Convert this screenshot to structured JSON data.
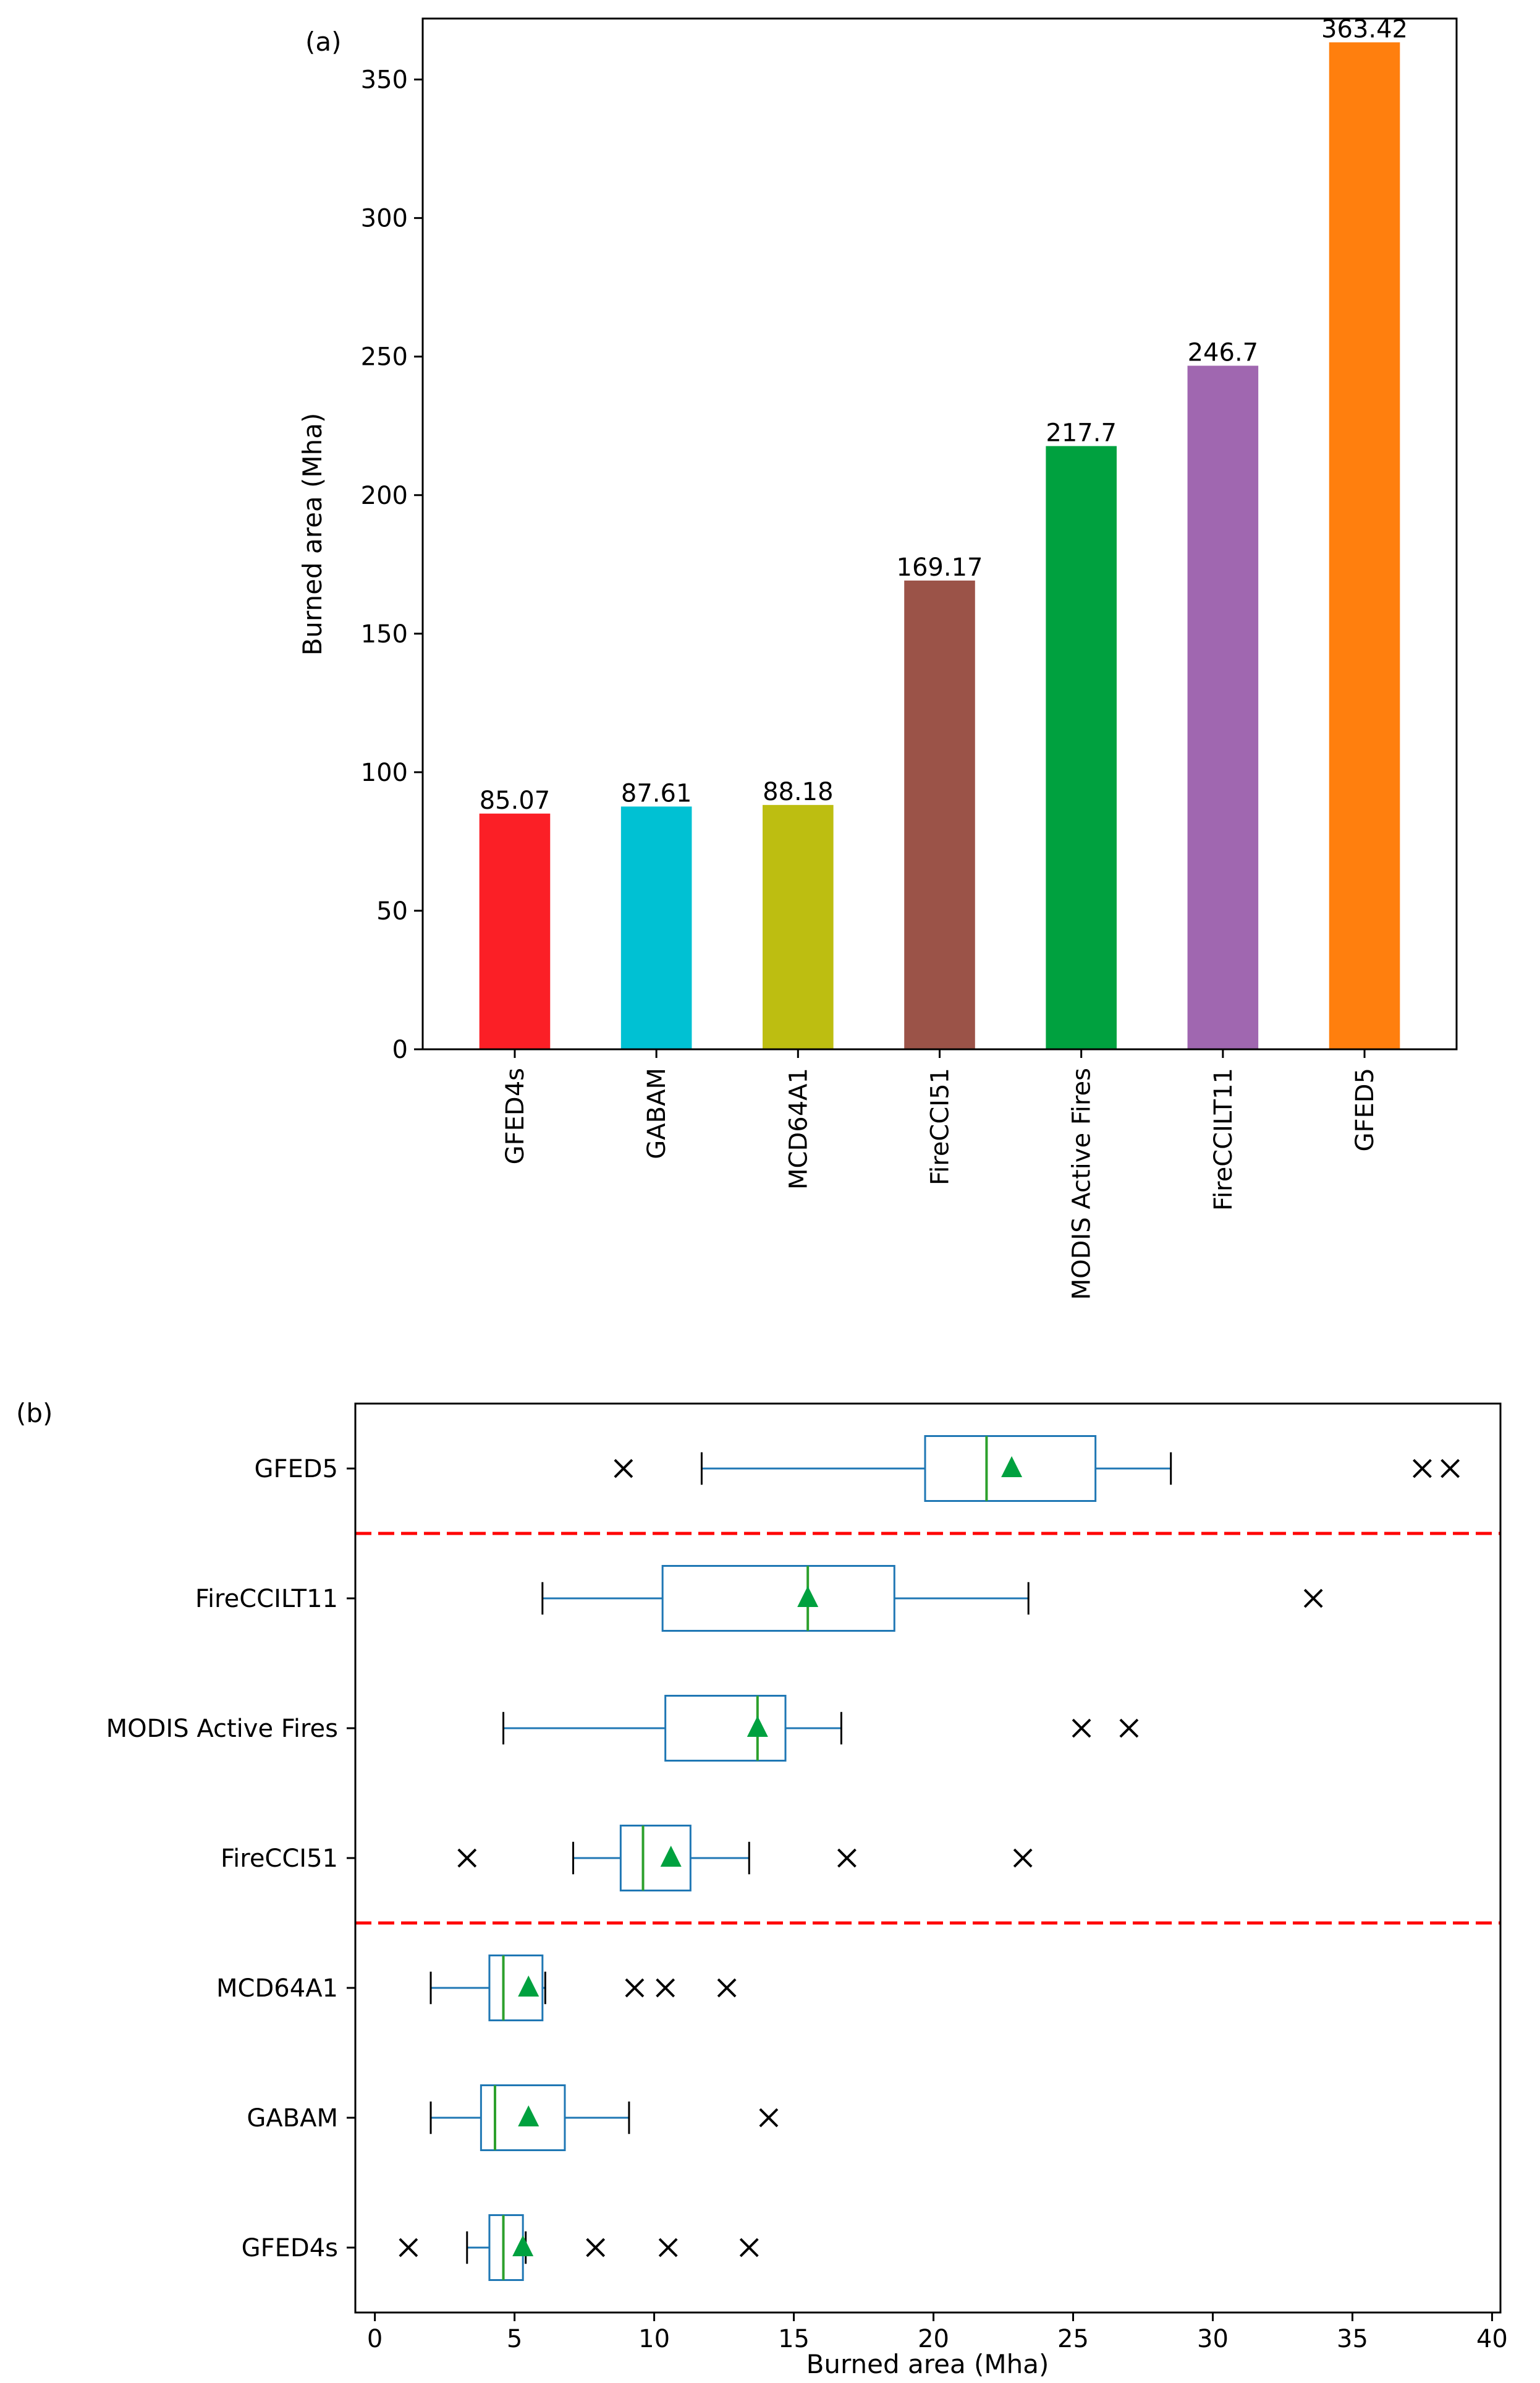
{
  "chart_data": [
    {
      "type": "bar",
      "panel_label": "(a)",
      "title": "",
      "xlabel": "",
      "ylabel": "Burned area (Mha)",
      "ylim": [
        0,
        372
      ],
      "yticks": [
        0,
        50,
        100,
        150,
        200,
        250,
        300,
        350
      ],
      "categories": [
        "GFED4s",
        "GABAM",
        "MCD64A1",
        "FireCCI51",
        "MODIS Active Fires",
        "FireCCILT11",
        "GFED5"
      ],
      "values": [
        85.07,
        87.61,
        88.18,
        169.17,
        217.7,
        246.7,
        363.42
      ],
      "value_labels": [
        "85.07",
        "87.61",
        "88.18",
        "169.17",
        "217.7",
        "246.7",
        "363.42"
      ],
      "colors": [
        "#fb1f26",
        "#00c1d3",
        "#bdbe11",
        "#9b5348",
        "#00a13f",
        "#a067b0",
        "#ff7f0e"
      ]
    },
    {
      "type": "box",
      "panel_label": "(b)",
      "title": "",
      "xlabel": "Burned area (Mha)",
      "ylabel": "",
      "xlim": [
        -0.7,
        40.3
      ],
      "xticks": [
        0,
        5,
        10,
        15,
        20,
        25,
        30,
        35,
        40
      ],
      "categories": [
        "GFED5",
        "FireCCILT11",
        "MODIS Active Fires",
        "FireCCI51",
        "MCD64A1",
        "GABAM",
        "GFED4s"
      ],
      "boxes": [
        {
          "name": "GFED5",
          "whisker_low": 11.7,
          "q1": 19.7,
          "median": 21.9,
          "q3": 25.8,
          "whisker_high": 28.5,
          "mean": 22.8,
          "outliers": [
            8.9,
            37.5,
            38.5
          ]
        },
        {
          "name": "FireCCILT11",
          "whisker_low": 6.0,
          "q1": 10.3,
          "median": 15.5,
          "q3": 18.6,
          "whisker_high": 23.4,
          "mean": 15.5,
          "outliers": [
            33.6
          ]
        },
        {
          "name": "MODIS Active Fires",
          "whisker_low": 4.6,
          "q1": 10.4,
          "median": 13.7,
          "q3": 14.7,
          "whisker_high": 16.7,
          "mean": 13.7,
          "outliers": [
            25.3,
            27.0
          ]
        },
        {
          "name": "FireCCI51",
          "whisker_low": 7.1,
          "q1": 8.8,
          "median": 9.6,
          "q3": 11.3,
          "whisker_high": 13.4,
          "mean": 10.6,
          "outliers": [
            3.3,
            16.9,
            23.2
          ]
        },
        {
          "name": "MCD64A1",
          "whisker_low": 2.0,
          "q1": 4.1,
          "median": 4.6,
          "q3": 6.0,
          "whisker_high": 6.1,
          "mean": 5.5,
          "outliers": [
            9.3,
            10.4,
            12.6
          ]
        },
        {
          "name": "GABAM",
          "whisker_low": 2.0,
          "q1": 3.8,
          "median": 4.3,
          "q3": 6.8,
          "whisker_high": 9.1,
          "mean": 5.5,
          "outliers": [
            14.1
          ]
        },
        {
          "name": "GFED4s",
          "whisker_low": 3.3,
          "q1": 4.1,
          "median": 4.6,
          "q3": 5.3,
          "whisker_high": 5.4,
          "mean": 5.3,
          "outliers": [
            1.2,
            7.9,
            10.5,
            13.4
          ]
        }
      ],
      "separator_lines_after": [
        "GFED5",
        "FireCCI51"
      ],
      "colors": {
        "box": "#1f77b4",
        "median": "#2ca02c",
        "mean": "#00a13f",
        "whisker_cap": "#000000",
        "outlier": "#000000",
        "separator": "#ff0000"
      }
    }
  ]
}
